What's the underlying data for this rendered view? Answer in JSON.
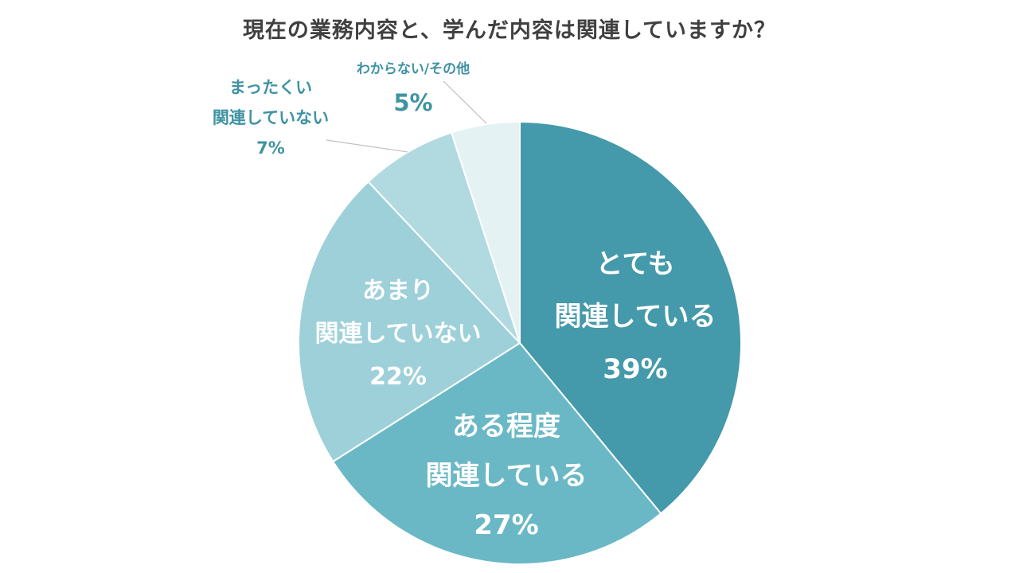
{
  "chart_data": {
    "type": "pie",
    "title": "現在の業務内容と、学んだ内容は関連していますか？",
    "slices": [
      {
        "label_lines": [
          "とても",
          "関連している"
        ],
        "value": 39,
        "value_label": "39%",
        "color": "#4499aa",
        "label_position": "inside"
      },
      {
        "label_lines": [
          "ある程度",
          "関連している"
        ],
        "value": 27,
        "value_label": "27%",
        "color": "#6ab8c5",
        "label_position": "inside"
      },
      {
        "label_lines": [
          "あまり",
          "関連していない"
        ],
        "value": 22,
        "value_label": "22%",
        "color": "#9dd0d9",
        "label_position": "inside"
      },
      {
        "label_lines": [
          "まったくい",
          "関連していない"
        ],
        "value": 7,
        "value_label": "7%",
        "color": "#b1d9e0",
        "label_position": "outside"
      },
      {
        "label_lines": [
          "わからない/その他"
        ],
        "value": 5,
        "value_label": "5%",
        "color": "#e4f2f4",
        "label_position": "outside"
      }
    ],
    "start_angle_deg": 0,
    "direction": "clockwise",
    "label_text_color_outside": "#3f93a2",
    "slice_border_color": "#ffffff",
    "leader_line_color": "#bfbfbf"
  }
}
